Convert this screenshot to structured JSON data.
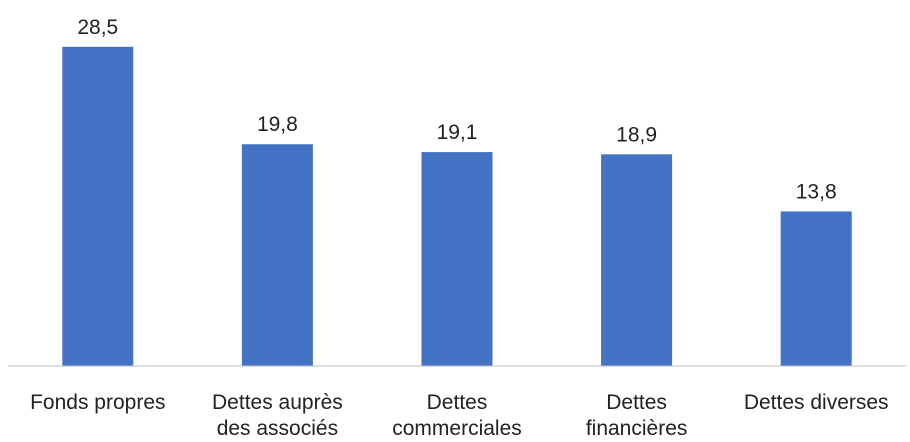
{
  "chart_data": {
    "type": "bar",
    "title": "",
    "xlabel": "",
    "ylabel": "",
    "categories": [
      [
        "Fonds propres"
      ],
      [
        "Dettes auprès",
        "des associés"
      ],
      [
        "Dettes",
        "commerciales"
      ],
      [
        "Dettes",
        "financières"
      ],
      [
        "Dettes diverses"
      ]
    ],
    "values": [
      28.5,
      19.8,
      19.1,
      18.9,
      13.8
    ],
    "value_labels": [
      "28,5",
      "19,8",
      "19,1",
      "18,9",
      "13,8"
    ],
    "ylim": [
      0,
      30
    ],
    "grid": false,
    "legend": "none",
    "colors": {
      "bar": "#4472C4",
      "axis": "#BFBFBF",
      "text": "#222222"
    }
  }
}
